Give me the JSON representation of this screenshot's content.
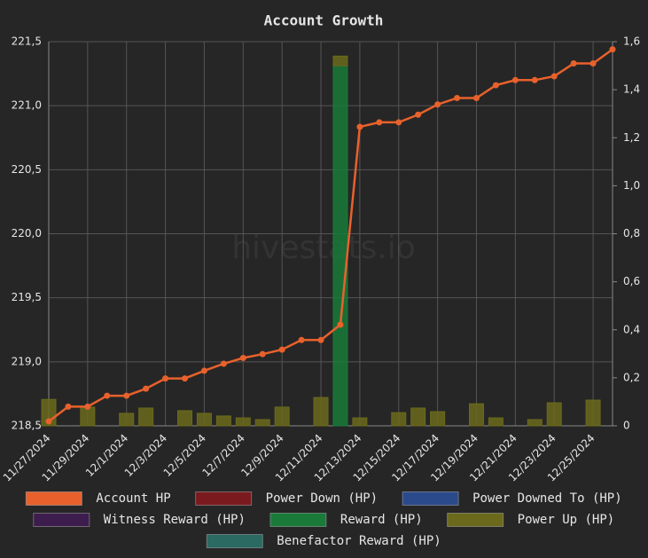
{
  "chart_data": {
    "type": "combo",
    "title": "Account Growth",
    "watermark": "hivestats.io",
    "categories": [
      "11/27/2024",
      null,
      "11/29/2024",
      null,
      "12/1/2024",
      null,
      "12/3/2024",
      null,
      "12/5/2024",
      null,
      "12/7/2024",
      null,
      "12/9/2024",
      null,
      "12/11/2024",
      null,
      "12/13/2024",
      null,
      "12/15/2024",
      null,
      "12/17/2024",
      null,
      "12/19/2024",
      null,
      "12/21/2024",
      null,
      "12/23/2024",
      null,
      "12/25/2024",
      null
    ],
    "ylim": [
      218.5,
      221.5
    ],
    "yticks": [
      {
        "value": 218.5,
        "label": "218,5"
      },
      {
        "value": 219.0,
        "label": "219,0"
      },
      {
        "value": 219.5,
        "label": "219,5"
      },
      {
        "value": 220.0,
        "label": "220,0"
      },
      {
        "value": 220.5,
        "label": "220,5"
      },
      {
        "value": 221.0,
        "label": "221,0"
      },
      {
        "value": 221.5,
        "label": "221,5"
      }
    ],
    "y2lim": [
      0,
      1.6
    ],
    "y2ticks": [
      0,
      {
        "value": 0.2,
        "label": "0,2"
      },
      {
        "value": 0.4,
        "label": "0,4"
      },
      {
        "value": 0.6,
        "label": "0,6"
      },
      {
        "value": 0.8,
        "label": "0,8"
      },
      {
        "value": 1.0,
        "label": "1,0"
      },
      {
        "value": 1.2,
        "label": "1,2"
      },
      {
        "value": 1.4,
        "label": "1,4"
      },
      {
        "value": 1.6,
        "label": "1,6"
      }
    ],
    "grid": true,
    "series": [
      {
        "name": "Account HP",
        "type": "line",
        "axis": "y",
        "color": "#e8612c",
        "values": [
          218.535,
          218.65,
          218.65,
          218.735,
          218.735,
          218.79,
          218.87,
          218.87,
          218.93,
          218.985,
          219.03,
          219.06,
          219.095,
          219.17,
          219.17,
          219.29,
          220.835,
          220.87,
          220.87,
          220.93,
          221.01,
          221.06,
          221.06,
          221.16,
          221.2,
          221.2,
          221.23,
          221.33,
          221.33,
          221.44
        ]
      },
      {
        "name": "Power Down (HP)",
        "type": "bar",
        "axis": "y2",
        "color": "#7a1a1e",
        "values": [
          null,
          null,
          null,
          null,
          null,
          null,
          null,
          null,
          null,
          null,
          null,
          null,
          null,
          null,
          null,
          null,
          null,
          null,
          null,
          null,
          null,
          null,
          null,
          null,
          null,
          null,
          null,
          null,
          null,
          null
        ]
      },
      {
        "name": "Power Downed To (HP)",
        "type": "bar",
        "axis": "y2",
        "color": "#2b4a8c",
        "values": [
          null,
          null,
          null,
          null,
          null,
          null,
          null,
          null,
          null,
          null,
          null,
          null,
          null,
          null,
          null,
          null,
          null,
          null,
          null,
          null,
          null,
          null,
          null,
          null,
          null,
          null,
          null,
          null,
          null,
          null
        ]
      },
      {
        "name": "Witness Reward (HP)",
        "type": "bar",
        "axis": "y2",
        "color": "#3d1d4d",
        "values": [
          null,
          null,
          null,
          null,
          null,
          null,
          null,
          null,
          null,
          null,
          null,
          null,
          null,
          null,
          null,
          null,
          null,
          null,
          null,
          null,
          null,
          null,
          null,
          null,
          null,
          null,
          null,
          null,
          null,
          null
        ]
      },
      {
        "name": "Reward (HP)",
        "type": "bar",
        "axis": "y2",
        "color": "#1a7a3a",
        "values": [
          null,
          null,
          null,
          null,
          null,
          null,
          null,
          null,
          null,
          null,
          null,
          null,
          null,
          null,
          null,
          1.5,
          null,
          null,
          null,
          null,
          null,
          null,
          null,
          null,
          null,
          null,
          null,
          null,
          null,
          null
        ]
      },
      {
        "name": "Power Up (HP)",
        "type": "bar",
        "axis": "y2",
        "color": "#6b6a1c",
        "values": [
          0.11,
          null,
          0.078,
          null,
          0.052,
          0.074,
          null,
          0.063,
          0.052,
          0.041,
          0.033,
          0.026,
          0.078,
          null,
          0.118,
          0.04,
          0.033,
          null,
          0.055,
          0.074,
          0.059,
          null,
          0.092,
          0.033,
          null,
          0.026,
          0.096,
          null,
          0.107,
          null
        ]
      },
      {
        "name": "Benefactor Reward (HP)",
        "type": "bar",
        "axis": "y2",
        "color": "#2a6a62",
        "values": [
          null,
          null,
          null,
          null,
          null,
          null,
          null,
          null,
          null,
          null,
          null,
          null,
          null,
          null,
          null,
          null,
          null,
          null,
          null,
          null,
          null,
          null,
          null,
          null,
          null,
          null,
          null,
          null,
          null,
          null
        ]
      }
    ]
  }
}
